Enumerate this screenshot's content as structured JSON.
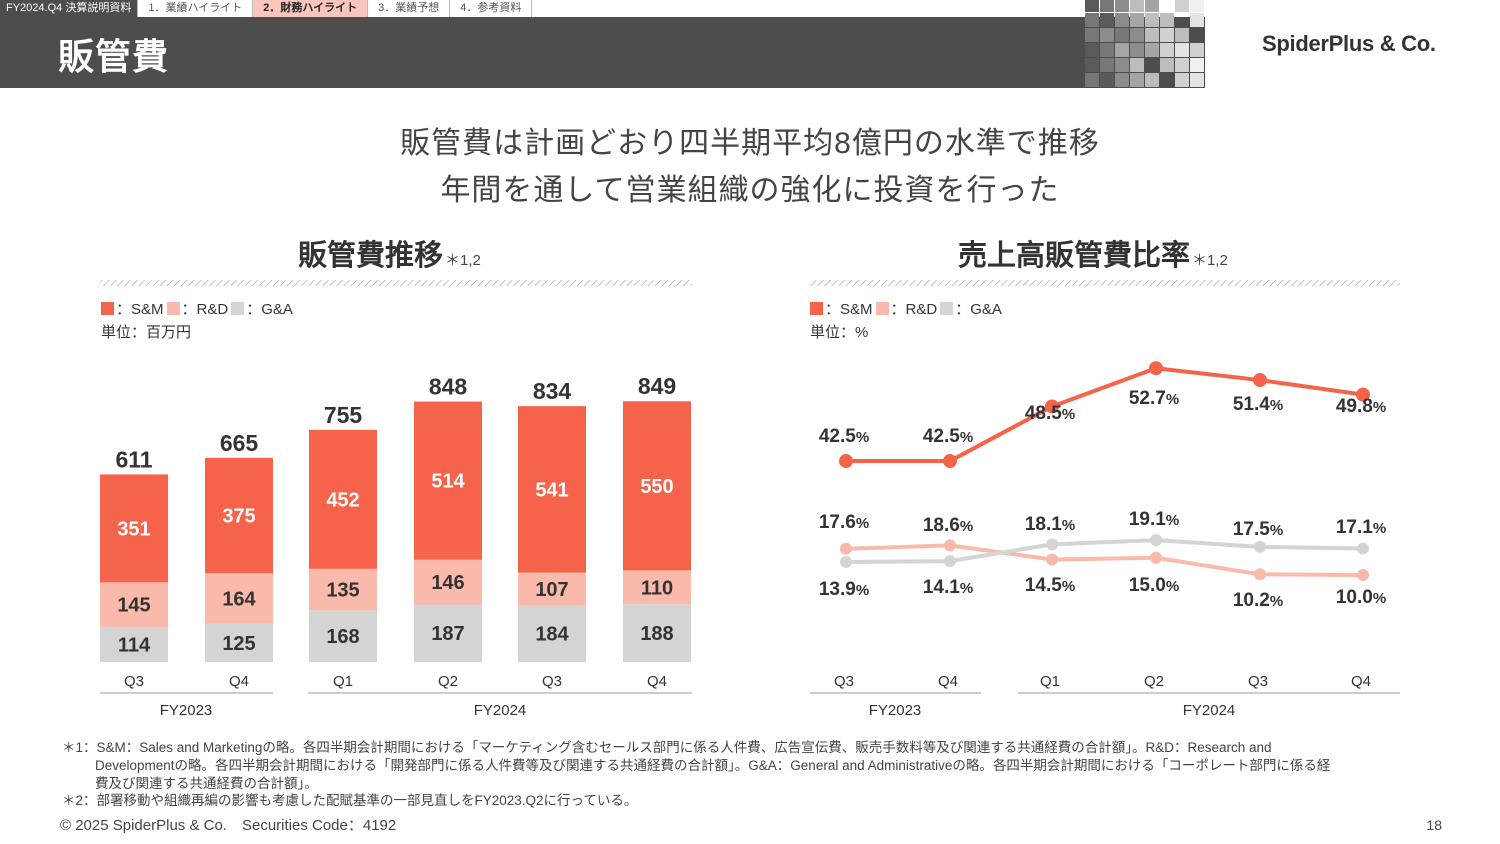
{
  "header": {
    "doc_label": "FY2024.Q4 決算説明資料",
    "tabs": [
      {
        "label": "1．業績ハイライト",
        "active": false
      },
      {
        "label": "2．財務ハイライト",
        "active": true
      },
      {
        "label": "3．業績予想",
        "active": false
      },
      {
        "label": "4．参考資料",
        "active": false
      }
    ],
    "title": "販管費",
    "logo": "SpiderPlus & Co."
  },
  "headline": {
    "line1": "販管費は計画どおり四半期平均8億円の水準で推移",
    "line2": "年間を通して営業組織の強化に投資を行った"
  },
  "colors": {
    "sm": "#f4634a",
    "rd": "#f9b9ab",
    "ga": "#d4d4d4"
  },
  "left": {
    "title": "販管費推移",
    "title_note": "＊1,2",
    "legend": [
      "：S&M",
      "：R&D",
      "：G&A"
    ],
    "unit": "単位：百万円"
  },
  "right": {
    "title": "売上高販管費比率",
    "title_note": "＊1,2",
    "legend": [
      "：S&M",
      "：R&D",
      "：G&A"
    ],
    "unit": "単位：%"
  },
  "chart_data": [
    {
      "type": "bar",
      "stacked": true,
      "title": "販管費推移",
      "unit": "百万円",
      "categories": [
        "Q3",
        "Q4",
        "Q1",
        "Q2",
        "Q3",
        "Q4"
      ],
      "groups": [
        {
          "label": "FY2023",
          "count": 2
        },
        {
          "label": "FY2024",
          "count": 4
        }
      ],
      "series": [
        {
          "name": "G&A",
          "values": [
            114,
            125,
            168,
            187,
            184,
            188
          ]
        },
        {
          "name": "R&D",
          "values": [
            145,
            164,
            135,
            146,
            107,
            110
          ]
        },
        {
          "name": "S&M",
          "values": [
            351,
            375,
            452,
            514,
            541,
            550
          ]
        }
      ],
      "totals": [
        611,
        665,
        755,
        848,
        834,
        849
      ]
    },
    {
      "type": "line",
      "title": "売上高販管費比率",
      "unit": "%",
      "categories": [
        "Q3",
        "Q4",
        "Q1",
        "Q2",
        "Q3",
        "Q4"
      ],
      "groups": [
        {
          "label": "FY2023",
          "count": 2
        },
        {
          "label": "FY2024",
          "count": 4
        }
      ],
      "series": [
        {
          "name": "S&M",
          "values": [
            42.5,
            42.5,
            48.5,
            52.7,
            51.4,
            49.8
          ]
        },
        {
          "name": "R&D",
          "values": [
            17.6,
            18.6,
            14.5,
            15.0,
            10.2,
            10.0
          ]
        },
        {
          "name": "G&A",
          "values": [
            13.9,
            14.1,
            18.1,
            19.1,
            17.5,
            17.1
          ]
        }
      ],
      "labels": {
        "top": [
          "42.5",
          "42.5",
          "48.5",
          "52.7",
          "51.4",
          "49.8"
        ],
        "upper": [
          "17.6",
          "18.6",
          "18.1",
          "19.1",
          "17.5",
          "17.1"
        ],
        "lower": [
          "13.9",
          "14.1",
          "14.5",
          "15.0",
          "10.2",
          "10.0"
        ]
      },
      "pct_suffix": "%"
    }
  ],
  "footnotes": {
    "n1_line1": "＊1：S&M：Sales and Marketingの略。各四半期会計期間における「マーケティング含むセールス部門に係る人件費、広告宣伝費、販売手数料等及び関連する共通経費の合計額」。R&D：Research and",
    "n1_line2": "Developmentの略。各四半期会計期間における「開発部門に係る人件費等及び関連する共通経費の合計額」。G&A：General and Administrativeの略。各四半期会計期間における「コーポレート部門に係る経",
    "n1_line3": "費及び関連する共通経費の合計額」。",
    "n2": "＊2：部署移動や組織再編の影響も考慮した配賦基準の一部見直しをFY2023.Q2に行っている。"
  },
  "footer": {
    "copyright": "© 2025 SpiderPlus & Co.　Securities Code：4192",
    "page": "18"
  }
}
